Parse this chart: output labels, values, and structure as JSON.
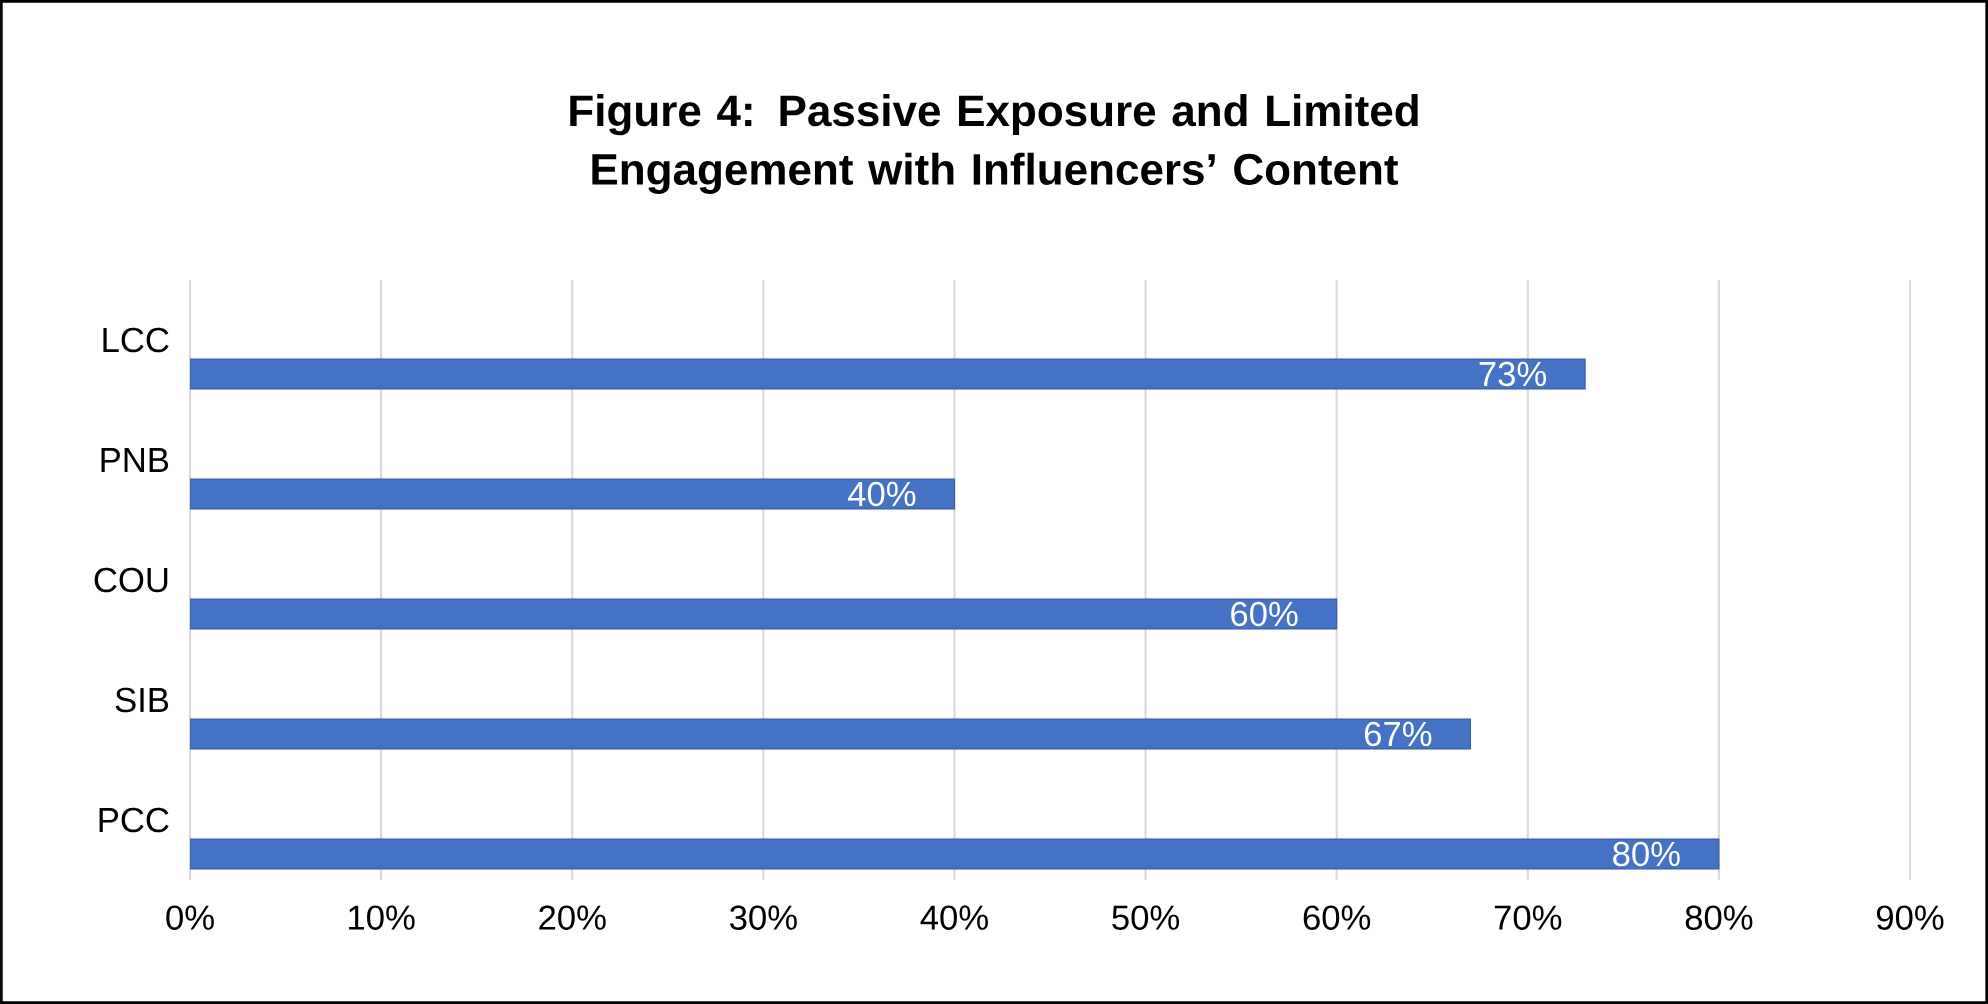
{
  "chart_data": {
    "type": "bar",
    "orientation": "horizontal",
    "title": "Figure 4: Passive Exposure and Limited Engagement with Influencers’ Content",
    "categories": [
      "LCC",
      "PNB",
      "COU",
      "SIB",
      "PCC"
    ],
    "values": [
      73,
      40,
      60,
      67,
      80
    ],
    "value_labels": [
      "73%",
      "40%",
      "60%",
      "67%",
      "80%"
    ],
    "color": "#4472c4",
    "xlim": [
      0,
      90
    ],
    "xticks": [
      {
        "value": 0,
        "label": "0%"
      },
      {
        "value": 10,
        "label": "10%"
      },
      {
        "value": 20,
        "label": "20%"
      },
      {
        "value": 30,
        "label": "30%"
      },
      {
        "value": 40,
        "label": "40%"
      },
      {
        "value": 50,
        "label": "50%"
      },
      {
        "value": 60,
        "label": "60%"
      },
      {
        "value": 70,
        "label": "70%"
      },
      {
        "value": 80,
        "label": "80%"
      },
      {
        "value": 90,
        "label": "90%"
      }
    ],
    "grid": "x"
  }
}
